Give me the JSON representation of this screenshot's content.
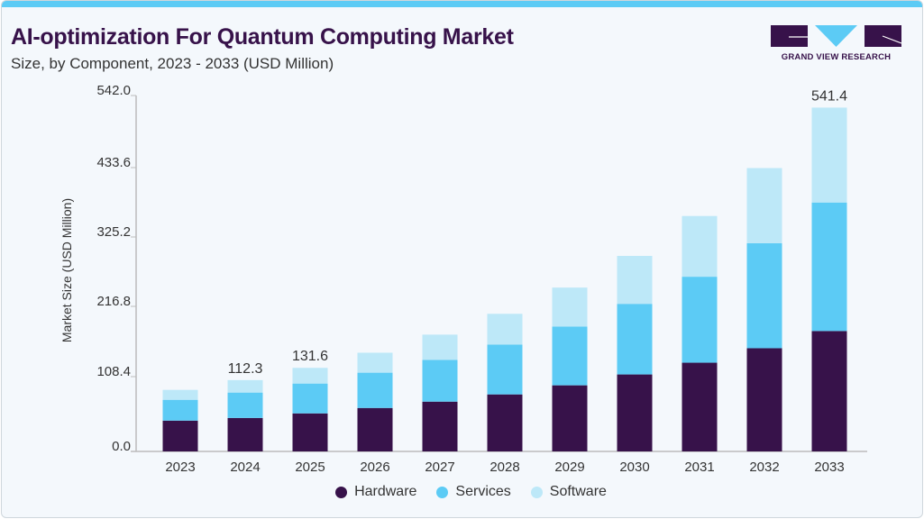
{
  "header": {
    "title": "AI-optimization For Quantum Computing Market",
    "subtitle": "Size, by Component, 2023 - 2033 (USD Million)"
  },
  "logo": {
    "text": "GRAND VIEW RESEARCH"
  },
  "chart_data": {
    "type": "bar",
    "stacked": true,
    "title": "AI-optimization For Quantum Computing Market",
    "subtitle": "Size, by Component, 2023 - 2033 (USD Million)",
    "xlabel": "",
    "ylabel": "Market Size (USD Million)",
    "ylim": [
      0,
      542
    ],
    "yticks": [
      "0.0",
      "108.4",
      "216.8",
      "325.2",
      "433.6",
      "542.0"
    ],
    "grid": false,
    "legend_position": "bottom",
    "categories": [
      "2023",
      "2024",
      "2025",
      "2026",
      "2027",
      "2028",
      "2029",
      "2030",
      "2031",
      "2032",
      "2033"
    ],
    "series": [
      {
        "name": "Hardware",
        "color": "#37124a",
        "values": [
          48.5,
          52.7,
          59.9,
          68.4,
          78.4,
          89.8,
          104.1,
          121.2,
          139.7,
          162.5,
          189.6
        ]
      },
      {
        "name": "Services",
        "color": "#5ccbf5",
        "values": [
          32.8,
          40.0,
          47.0,
          55.6,
          65.6,
          78.4,
          92.6,
          111.2,
          135.4,
          165.4,
          202.4
        ]
      },
      {
        "name": "Software",
        "color": "#bde8f8",
        "values": [
          15.6,
          19.6,
          24.7,
          31.4,
          39.9,
          48.5,
          61.3,
          75.5,
          95.6,
          118.3,
          149.4
        ]
      }
    ],
    "annotations": [
      {
        "category": "2024",
        "label": "112.3"
      },
      {
        "category": "2025",
        "label": "131.6"
      },
      {
        "category": "2033",
        "label": "541.4"
      }
    ]
  }
}
